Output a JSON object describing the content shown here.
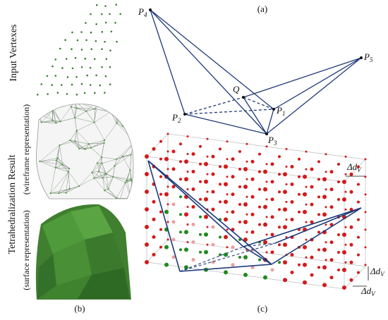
{
  "figure": {
    "left": {
      "input_label": "Input Vertexes",
      "result_label": "Tetrahedralization Result",
      "wireframe_label": "(wireframe representation)",
      "surface_label": "(surface representation)",
      "caption": "(b)"
    },
    "a": {
      "caption": "(a)",
      "points": [
        {
          "name": "P",
          "sub": "4"
        },
        {
          "name": "P",
          "sub": "5"
        },
        {
          "name": "Q"
        },
        {
          "name": "P",
          "sub": "1"
        },
        {
          "name": "P",
          "sub": "2"
        },
        {
          "name": "P",
          "sub": "3"
        }
      ]
    },
    "c": {
      "caption": "(c)",
      "spacing_labels": [
        {
          "name": "Δd",
          "sub": "V"
        },
        {
          "name": "Δd",
          "sub": "V"
        },
        {
          "name": "Δd",
          "sub": "V"
        }
      ]
    }
  }
}
